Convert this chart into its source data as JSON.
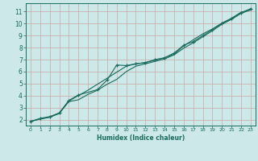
{
  "xlabel": "Humidex (Indice chaleur)",
  "ylabel": "",
  "bg_color": "#cce8e8",
  "grid_color": "#c8a8a8",
  "line_color": "#1a6b5e",
  "xlim": [
    -0.5,
    23.5
  ],
  "ylim": [
    1.5,
    11.7
  ],
  "xticks": [
    0,
    1,
    2,
    3,
    4,
    5,
    6,
    7,
    8,
    9,
    10,
    11,
    12,
    13,
    14,
    15,
    16,
    17,
    18,
    19,
    20,
    21,
    22,
    23
  ],
  "yticks": [
    2,
    3,
    4,
    5,
    6,
    7,
    8,
    9,
    10,
    11
  ],
  "line1_x": [
    0,
    1,
    2,
    3,
    4,
    5,
    6,
    7,
    8,
    9,
    10,
    11,
    12,
    13,
    14,
    15,
    16,
    17,
    18,
    19,
    20,
    21,
    22,
    23
  ],
  "line1_y": [
    1.85,
    2.05,
    2.2,
    2.5,
    3.5,
    3.65,
    4.1,
    4.45,
    4.95,
    5.35,
    6.0,
    6.45,
    6.65,
    6.85,
    7.05,
    7.4,
    7.95,
    8.4,
    8.9,
    9.4,
    9.95,
    10.35,
    10.85,
    11.15
  ],
  "line2_x": [
    0,
    1,
    2,
    3,
    4,
    5,
    6,
    7,
    8,
    9,
    10,
    11,
    12,
    13,
    14,
    15,
    16,
    17,
    18,
    19,
    20,
    21,
    22,
    23
  ],
  "line2_y": [
    1.85,
    2.05,
    2.2,
    2.55,
    3.55,
    4.0,
    4.45,
    4.95,
    5.45,
    5.95,
    6.45,
    6.65,
    6.75,
    6.95,
    7.15,
    7.45,
    8.15,
    8.65,
    9.15,
    9.55,
    10.05,
    10.45,
    10.95,
    11.15
  ],
  "line3_x": [
    0,
    1,
    2,
    3,
    4,
    5,
    7,
    8,
    9,
    10,
    11,
    12,
    13,
    14,
    15,
    16,
    17,
    18,
    19,
    20,
    21,
    22,
    23
  ],
  "line3_y": [
    1.85,
    2.1,
    2.25,
    2.55,
    3.6,
    4.05,
    4.5,
    5.3,
    6.55,
    6.5,
    6.65,
    6.75,
    7.0,
    7.15,
    7.55,
    8.2,
    8.5,
    9.0,
    9.5,
    10.0,
    10.4,
    10.9,
    11.25
  ]
}
